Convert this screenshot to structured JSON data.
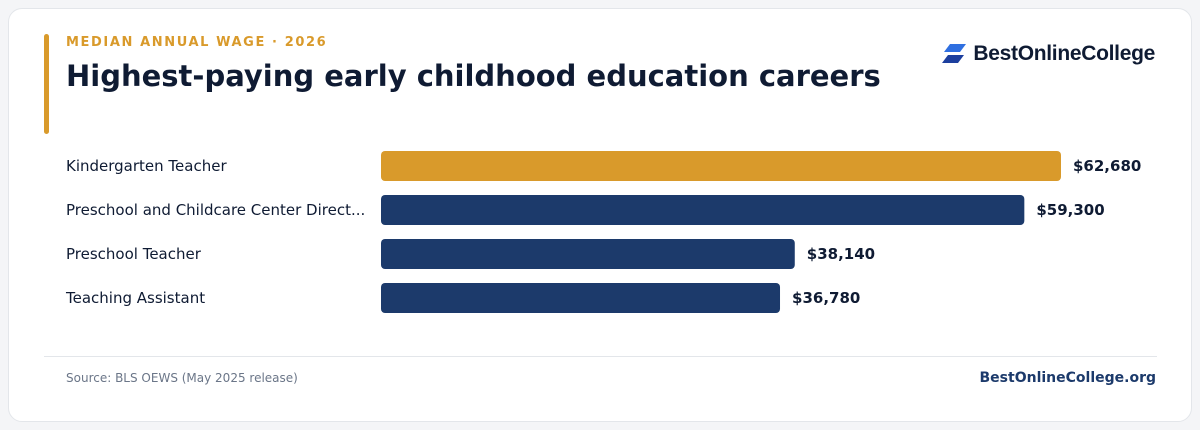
{
  "header": {
    "kicker": "MEDIAN ANNUAL WAGE · 2026",
    "title": "Highest-paying early childhood education careers"
  },
  "brand": {
    "logo_icon": "stacked-parallelogram-logo-icon",
    "logo_text": "BestOnlineCollege"
  },
  "colors": {
    "accent": "#d99a2b",
    "highlight_bar": "#d99a2b",
    "default_bar": "#1c3a6b",
    "title": "#0f1b33"
  },
  "chart_data": {
    "type": "bar",
    "orientation": "horizontal",
    "categories": [
      "Kindergarten Teacher",
      "Preschool and Childcare Center Direct...",
      "Preschool Teacher",
      "Teaching Assistant"
    ],
    "values": [
      62680,
      59300,
      38140,
      36780
    ],
    "value_labels": [
      "$62,680",
      "$59,300",
      "$38,140",
      "$36,780"
    ],
    "highlight_index": 0,
    "xlim": [
      0,
      62680
    ],
    "grid": false,
    "legend": "none"
  },
  "footer": {
    "source": "Source: BLS OEWS (May 2025 release)",
    "site": "BestOnlineCollege.org"
  }
}
